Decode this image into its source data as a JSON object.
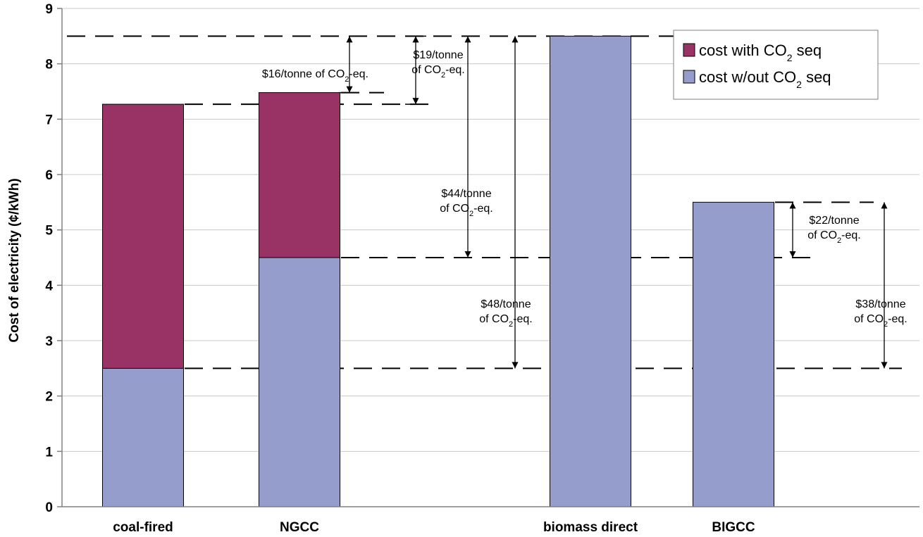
{
  "chart_data": {
    "type": "bar",
    "stacked": true,
    "title": "",
    "xlabel": "",
    "ylabel": "Cost of electricity (¢/kWh)",
    "ylim": [
      0,
      9
    ],
    "yticks": [
      0,
      1,
      2,
      3,
      4,
      5,
      6,
      7,
      8,
      9
    ],
    "grid": true,
    "legend_position": "top-right",
    "categories": [
      "coal-fired",
      "NGCC",
      "biomass direct",
      "BIGCC"
    ],
    "series": [
      {
        "name": "cost w/out CO2 seq",
        "legend_main": "cost w/out CO",
        "legend_sub": "2",
        "legend_tail": " seq",
        "color": "#959dcc",
        "values": [
          2.5,
          4.5,
          8.5,
          5.5
        ]
      },
      {
        "name": "cost with CO2 seq",
        "legend_main": "cost with CO",
        "legend_sub": "2",
        "legend_tail": " seq",
        "color": "#993366",
        "values": [
          4.77,
          2.98,
          0,
          0
        ]
      }
    ],
    "reference_lines": [
      8.5,
      7.27,
      7.48,
      4.5,
      5.5,
      2.5
    ],
    "annotations": [
      {
        "id": "ann-16",
        "line1": "$16/tonne of CO",
        "sub": "2",
        "tail": "-eq.",
        "from": 8.5,
        "to": 7.48
      },
      {
        "id": "ann-19",
        "line1": "$19/tonne",
        "line2": "of CO",
        "sub": "2",
        "tail": "-eq.",
        "from": 8.5,
        "to": 7.27
      },
      {
        "id": "ann-44",
        "line1": "$44/tonne",
        "line2": "of CO",
        "sub": "2",
        "tail": "-eq.",
        "from": 8.5,
        "to": 4.5
      },
      {
        "id": "ann-48",
        "line1": "$48/tonne",
        "line2": "of CO",
        "sub": "2",
        "tail": "-eq.",
        "from": 8.5,
        "to": 2.5
      },
      {
        "id": "ann-22",
        "line1": "$22/tonne",
        "line2": "of CO",
        "sub": "2",
        "tail": "-eq.",
        "from": 5.5,
        "to": 4.5
      },
      {
        "id": "ann-38",
        "line1": "$38/tonne",
        "line2": "of CO",
        "sub": "2",
        "tail": "-eq.",
        "from": 5.5,
        "to": 2.5
      }
    ]
  }
}
